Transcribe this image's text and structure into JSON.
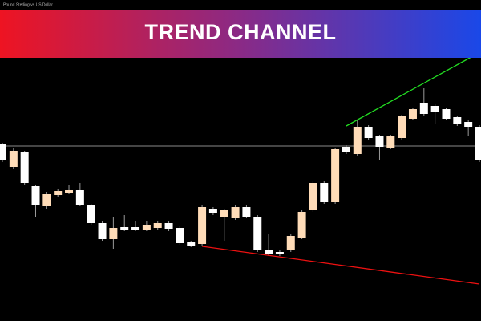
{
  "chart_data": {
    "type": "candlestick",
    "title": "TREND CHANNEL",
    "subtitle": "Pound Sterling vs US Dollar",
    "ylim": [
      0,
      400
    ],
    "up_color": "#ffdcb8",
    "down_color": "#ffffff",
    "wick_color": "#9a9a9a",
    "open": [
      220,
      192,
      210,
      168,
      143,
      157,
      160,
      163,
      144,
      122,
      102,
      117,
      117,
      114,
      116,
      122,
      116,
      98,
      96,
      140,
      130,
      128,
      142,
      130,
      88,
      86,
      88,
      104,
      138,
      172,
      148,
      217,
      208,
      242,
      230,
      216,
      228,
      252,
      272,
      268,
      264,
      254,
      248,
      242
    ],
    "high": [
      222,
      215,
      212,
      170,
      161,
      165,
      170,
      172,
      146,
      124,
      130,
      132,
      125,
      124,
      124,
      124,
      118,
      100,
      144,
      142,
      140,
      144,
      144,
      132,
      108,
      88,
      108,
      138,
      174,
      174,
      216,
      219,
      250,
      244,
      232,
      232,
      257,
      266,
      290,
      270,
      266,
      256,
      250,
      244
    ],
    "low": [
      198,
      190,
      170,
      130,
      140,
      155,
      158,
      143,
      120,
      100,
      90,
      112,
      112,
      112,
      114,
      112,
      95,
      92,
      94,
      132,
      100,
      126,
      128,
      86,
      81,
      81,
      86,
      102,
      136,
      146,
      146,
      208,
      206,
      226,
      200,
      214,
      226,
      250,
      256,
      245,
      250,
      243,
      230,
      198
    ],
    "close": [
      200,
      212,
      172,
      145,
      158,
      162,
      163,
      145,
      122,
      102,
      116,
      114,
      114,
      120,
      122,
      115,
      97,
      94,
      142,
      134,
      138,
      142,
      130,
      88,
      83,
      83,
      106,
      136,
      172,
      148,
      214,
      210,
      242,
      228,
      217,
      230,
      255,
      264,
      258,
      260,
      252,
      245,
      242,
      200
    ],
    "horizontal_level": {
      "value": 218,
      "color": "#8a8a8a"
    },
    "trend_lines": [
      {
        "color": "#22dd22",
        "x": [
          31,
          42.4
        ],
        "values": [
          243,
          330
        ]
      },
      {
        "color": "#ee1111",
        "x": [
          18,
          43
        ],
        "values": [
          93,
          46
        ]
      }
    ]
  }
}
